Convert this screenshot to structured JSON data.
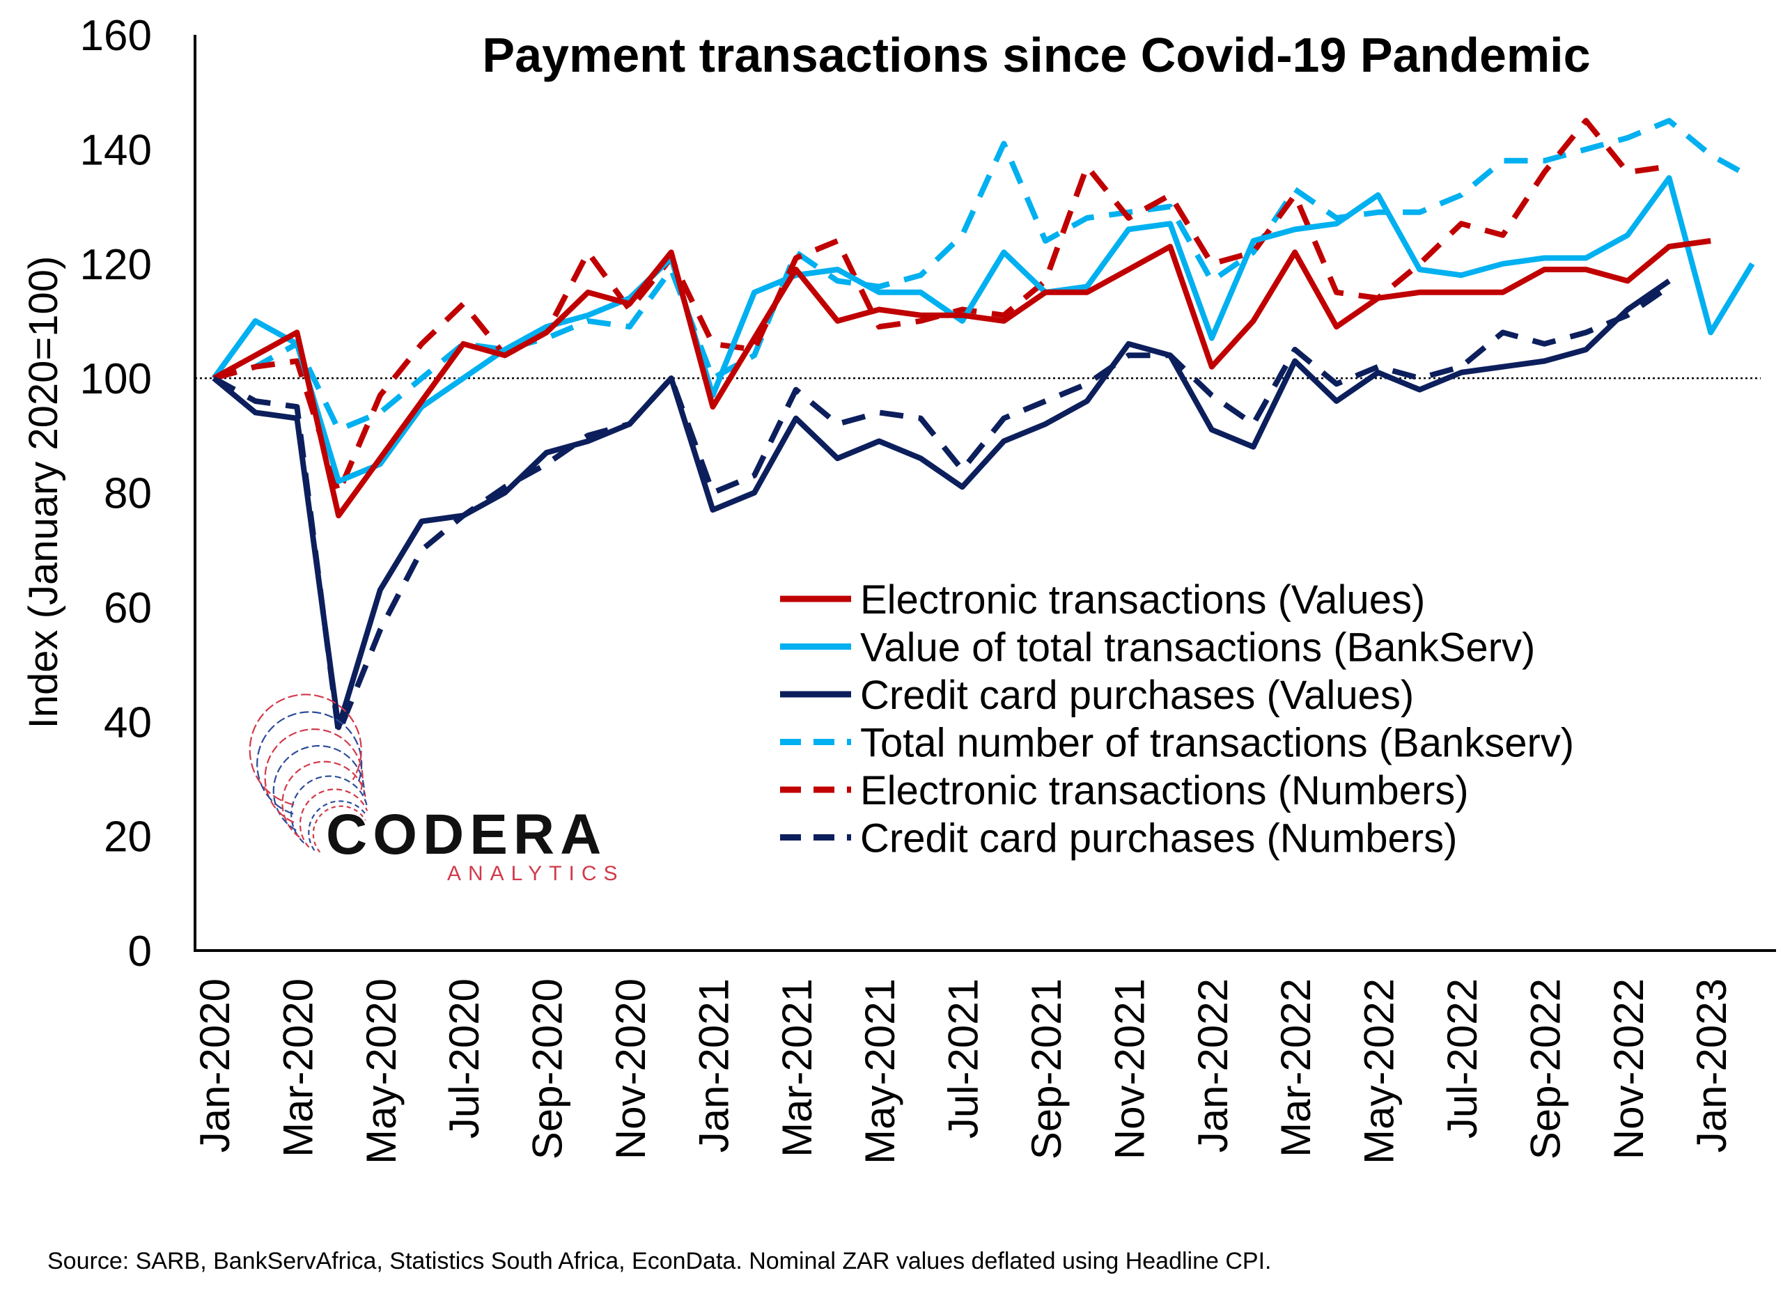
{
  "chart_data": {
    "type": "line",
    "title": "Payment transactions since Covid-19 Pandemic",
    "ylabel": "Index (January 2020=100)",
    "xlabel": "",
    "ylim": [
      0,
      160
    ],
    "yticks": [
      0,
      20,
      40,
      60,
      80,
      100,
      120,
      140,
      160
    ],
    "reference_line": 100,
    "grid": false,
    "legend_position": "center-right",
    "x": [
      "Jan-2020",
      "Feb-2020",
      "Mar-2020",
      "Apr-2020",
      "May-2020",
      "Jun-2020",
      "Jul-2020",
      "Aug-2020",
      "Sep-2020",
      "Oct-2020",
      "Nov-2020",
      "Dec-2020",
      "Jan-2021",
      "Feb-2021",
      "Mar-2021",
      "Apr-2021",
      "May-2021",
      "Jun-2021",
      "Jul-2021",
      "Aug-2021",
      "Sep-2021",
      "Oct-2021",
      "Nov-2021",
      "Dec-2021",
      "Jan-2022",
      "Feb-2022",
      "Mar-2022",
      "Apr-2022",
      "May-2022",
      "Jun-2022",
      "Jul-2022",
      "Aug-2022",
      "Sep-2022",
      "Oct-2022",
      "Nov-2022",
      "Dec-2022",
      "Jan-2023",
      "Feb-2023"
    ],
    "xtick_labels": [
      "Jan-2020",
      "Mar-2020",
      "May-2020",
      "Jul-2020",
      "Sep-2020",
      "Nov-2020",
      "Jan-2021",
      "Mar-2021",
      "May-2021",
      "Jul-2021",
      "Sep-2021",
      "Nov-2021",
      "Jan-2022",
      "Mar-2022",
      "May-2022",
      "Jul-2022",
      "Sep-2022",
      "Nov-2022",
      "Jan-2023"
    ],
    "series": [
      {
        "name": "Electronic transactions (Values)",
        "color": "#c00000",
        "style": "solid",
        "values": [
          100,
          104,
          108,
          76,
          86,
          96,
          106,
          104,
          108,
          115,
          113,
          122,
          95,
          107,
          119,
          110,
          112,
          111,
          111,
          110,
          115,
          115,
          119,
          123,
          102,
          110,
          122,
          109,
          114,
          115,
          115,
          115,
          119,
          119,
          117,
          123,
          124,
          null
        ]
      },
      {
        "name": "Value of total transactions (BankServ)",
        "color": "#00b0f0",
        "style": "solid",
        "values": [
          100,
          110,
          106,
          82,
          85,
          95,
          100,
          105,
          109,
          111,
          114,
          121,
          97,
          115,
          118,
          119,
          115,
          115,
          110,
          122,
          115,
          116,
          126,
          127,
          107,
          124,
          126,
          127,
          132,
          119,
          118,
          120,
          121,
          121,
          125,
          135,
          108,
          120
        ]
      },
      {
        "name": "Credit card purchases (Values)",
        "color": "#0c1f5c",
        "style": "solid",
        "values": [
          100,
          94,
          93,
          39,
          63,
          75,
          76,
          80,
          87,
          89,
          92,
          100,
          77,
          80,
          93,
          86,
          89,
          86,
          81,
          89,
          92,
          96,
          106,
          104,
          91,
          88,
          103,
          96,
          101,
          98,
          101,
          102,
          103,
          105,
          112,
          117,
          null,
          null
        ]
      },
      {
        "name": "Total number of transactions (Bankserv)",
        "color": "#00b0f0",
        "style": "dashed",
        "values": [
          100,
          102,
          106,
          91,
          94,
          100,
          106,
          105,
          107,
          110,
          109,
          119,
          100,
          104,
          122,
          117,
          116,
          118,
          125,
          141,
          124,
          128,
          129,
          130,
          117,
          122,
          133,
          128,
          129,
          129,
          132,
          138,
          138,
          140,
          142,
          145,
          139,
          135
        ]
      },
      {
        "name": "Electronic transactions (Numbers)",
        "color": "#c00000",
        "style": "dashed",
        "values": [
          100,
          102,
          103,
          80,
          97,
          106,
          113,
          104,
          108,
          122,
          112,
          121,
          106,
          105,
          121,
          124,
          109,
          110,
          112,
          111,
          117,
          137,
          128,
          132,
          120,
          122,
          132,
          115,
          114,
          120,
          127,
          125,
          136,
          145,
          136,
          137,
          null,
          null
        ]
      },
      {
        "name": "Credit card purchases (Numbers)",
        "color": "#0c1f5c",
        "style": "dashed",
        "values": [
          100,
          96,
          95,
          38,
          56,
          70,
          76,
          81,
          85,
          90,
          92,
          100,
          80,
          83,
          98,
          92,
          94,
          93,
          84,
          93,
          96,
          99,
          104,
          104,
          97,
          92,
          105,
          99,
          102,
          100,
          102,
          108,
          106,
          108,
          111,
          116,
          null,
          null
        ]
      }
    ]
  },
  "footer": {
    "source": "Source: SARB, BankServAfrica, Statistics South Africa, EconData. Nominal ZAR values deflated using Headline CPI."
  },
  "logo": {
    "word": "CODERA",
    "sub": "ANALYTICS",
    "colors": [
      "#d13a4a",
      "#2b4c9a"
    ]
  }
}
